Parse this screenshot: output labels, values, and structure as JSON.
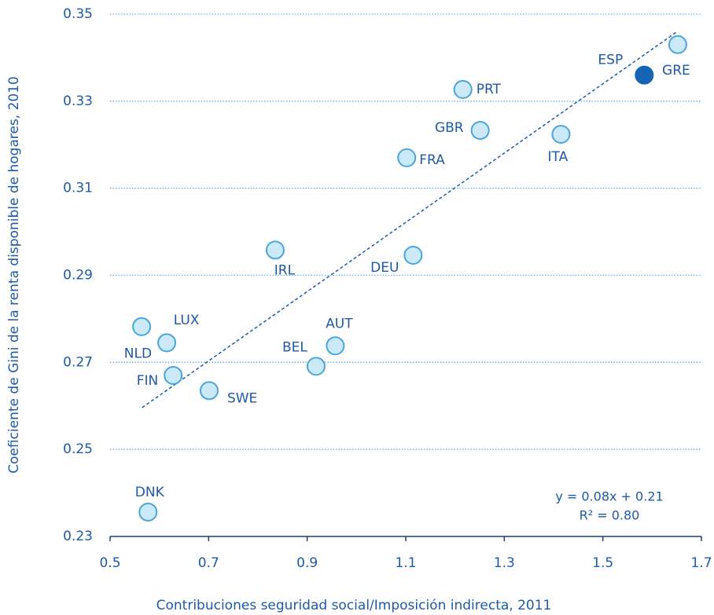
{
  "chart_data": {
    "type": "scatter",
    "x_label": "Contribuciones seguridad social/Imposición indirecta, 2011",
    "y_label": "Coeficiente de Gini de la renta disponible de hogares, 2010",
    "labels": [
      "GRE",
      "ESP",
      "PRT",
      "GBR",
      "ITA",
      "FRA",
      "IRL",
      "DEU",
      "LUX",
      "NLD",
      "AUT",
      "BEL",
      "FIN",
      "SWE",
      "DNK"
    ],
    "x": [
      1.652,
      1.584,
      1.216,
      1.251,
      1.415,
      1.102,
      0.835,
      1.115,
      0.564,
      0.615,
      0.957,
      0.918,
      0.628,
      0.701,
      0.577
    ],
    "values": [
      0.343,
      0.336,
      0.3327,
      0.3233,
      0.3224,
      0.317,
      0.2958,
      0.2946,
      0.2782,
      0.2745,
      0.2738,
      0.2691,
      0.267,
      0.2635,
      0.2356
    ],
    "color": "#cbe9f9",
    "edge_color": "#4aa6dc",
    "highlight": "ESP",
    "highlight_color": "#1565b4",
    "trendline": {
      "x": [
        0.565,
        1.651
      ],
      "y": [
        0.2596,
        0.346
      ]
    },
    "annotations": [
      "y = 0.08x + 0.21",
      "R² = 0.80"
    ],
    "xlim": [
      0.5,
      1.7
    ],
    "ylim": [
      0.23,
      0.35
    ],
    "xticks": [
      0.5,
      0.7,
      0.9,
      1.1,
      1.3,
      1.5,
      1.7
    ],
    "yticks": [
      0.23,
      0.25,
      0.27,
      0.29,
      0.31,
      0.33,
      0.35
    ],
    "grid": true
  }
}
